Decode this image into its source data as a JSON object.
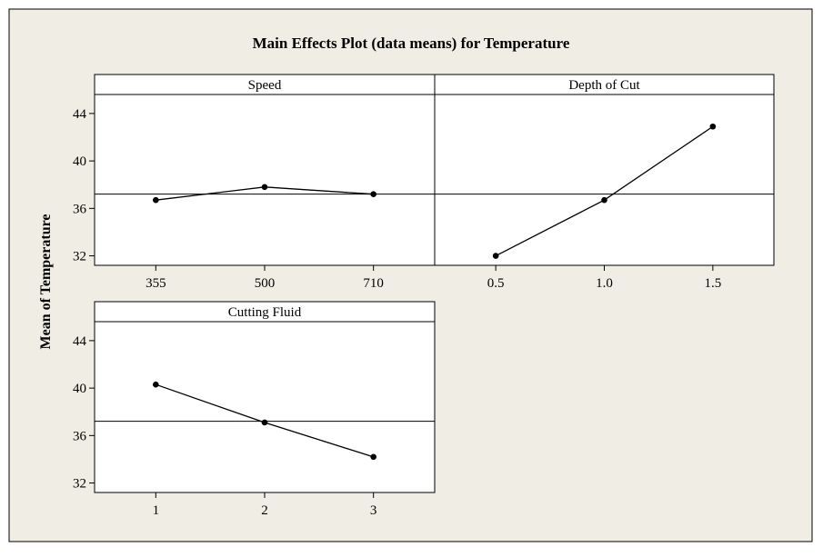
{
  "colors": {
    "background": "#f0ede4",
    "panel_fill": "#ffffff",
    "line": "#000000"
  },
  "chart_data": {
    "type": "line",
    "title": "Main Effects Plot (data means) for Temperature",
    "ylabel": "Mean of Temperature",
    "xlabel": "",
    "ylim": [
      31.2,
      45.6
    ],
    "yticks": [
      32,
      36,
      40,
      44
    ],
    "mean_line": 37.2,
    "grid": false,
    "panels": [
      {
        "name": "Speed",
        "categories": [
          "355",
          "500",
          "710"
        ],
        "values": [
          36.7,
          37.8,
          37.2
        ]
      },
      {
        "name": "Depth of Cut",
        "categories": [
          "0.5",
          "1.0",
          "1.5"
        ],
        "values": [
          32.0,
          36.7,
          42.9
        ]
      },
      {
        "name": "Cutting Fluid",
        "categories": [
          "1",
          "2",
          "3"
        ],
        "values": [
          40.3,
          37.1,
          34.2
        ]
      }
    ]
  }
}
